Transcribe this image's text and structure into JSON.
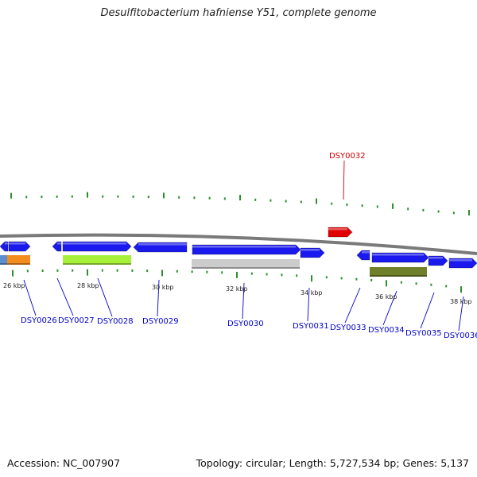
{
  "title": "Desulfitobacterium hafniense Y51, complete genome",
  "footer": {
    "accession": "Accession: NC_007907",
    "stats": "Topology: circular; Length: 5,727,534 bp; Genes: 5,137"
  },
  "colors": {
    "forward_gene": "#1a1aee",
    "highlight_gene": "#e00000",
    "backbone": "#7a7a7a",
    "tick": "#2f8f2f",
    "label_blue": "#0000cc",
    "label_red": "#cc0000",
    "category_colors": [
      "#f28c1e",
      "#a6f03a",
      "#cccccc",
      "#6f7f2a"
    ]
  },
  "scale": {
    "labels": [
      "26 kbp",
      "28 kbp",
      "30 kbp",
      "32 kbp",
      "34 kbp",
      "36 kbp",
      "38 kbp"
    ]
  },
  "gene_labels": [
    {
      "id": "DSY0026",
      "color": "blue"
    },
    {
      "id": "DSY0027",
      "color": "blue"
    },
    {
      "id": "DSY0028",
      "color": "blue"
    },
    {
      "id": "DSY0029",
      "color": "blue"
    },
    {
      "id": "DSY0030",
      "color": "blue"
    },
    {
      "id": "DSY0031",
      "color": "blue"
    },
    {
      "id": "DSY0032",
      "color": "red"
    },
    {
      "id": "DSY0033",
      "color": "blue"
    },
    {
      "id": "DSY0034",
      "color": "blue"
    },
    {
      "id": "DSY0035",
      "color": "blue"
    },
    {
      "id": "DSY0036",
      "color": "blue"
    }
  ]
}
